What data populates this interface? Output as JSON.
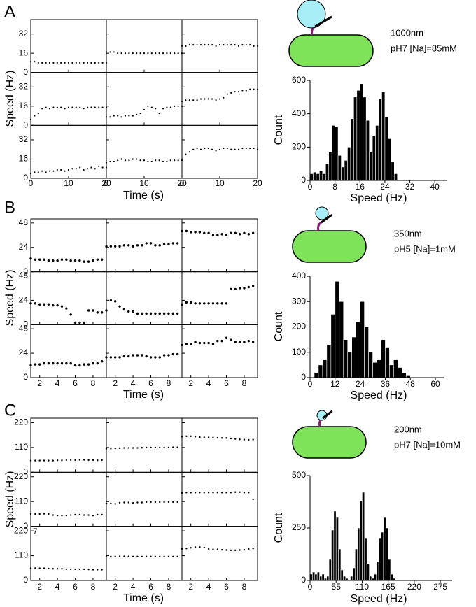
{
  "chart_data": [
    {
      "type": "scatter",
      "panel_label": "A",
      "ylabel": "Speed (Hz)",
      "xlabel": "Time (s)",
      "color": "#000000",
      "xlim": [
        0,
        20
      ],
      "xticks": [
        0,
        10,
        20
      ],
      "ylim": [
        0,
        44
      ],
      "yticks": [
        0,
        16,
        32
      ],
      "x": [
        0,
        1,
        2,
        3,
        4,
        5,
        6,
        7,
        8,
        9,
        10,
        11,
        12,
        13,
        14,
        15,
        16,
        17,
        18,
        19,
        20
      ],
      "series": [
        {
          "values": [
            9,
            9,
            8,
            8,
            8,
            8,
            8,
            8,
            8,
            8,
            8,
            8,
            8,
            8,
            8,
            8,
            8,
            8,
            8,
            8,
            8
          ]
        },
        {
          "values": [
            17,
            17,
            17,
            16,
            16,
            16,
            16,
            16,
            16,
            16,
            16,
            16,
            16,
            16,
            16,
            16,
            16,
            16,
            16,
            16,
            16
          ]
        },
        {
          "values": [
            22,
            22,
            23,
            23,
            23,
            23,
            23,
            23,
            23,
            22,
            23,
            23,
            23,
            23,
            23,
            22,
            23,
            23,
            23,
            22,
            22
          ]
        },
        {
          "values": [
            5,
            8,
            10,
            14,
            15,
            14,
            15,
            15,
            15,
            14,
            15,
            15,
            15,
            15,
            14,
            15,
            15,
            15,
            15,
            15,
            15
          ]
        },
        {
          "values": [
            7,
            7,
            8,
            8,
            7,
            8,
            8,
            8,
            9,
            10,
            13,
            16,
            15,
            14,
            10,
            14,
            15,
            15,
            16,
            16,
            16
          ]
        },
        {
          "values": [
            20,
            21,
            21,
            21,
            21,
            22,
            22,
            22,
            22,
            21,
            22,
            23,
            26,
            27,
            28,
            28,
            29,
            29,
            30,
            30,
            30
          ]
        },
        {
          "values": [
            4,
            5,
            5,
            6,
            5,
            6,
            6,
            7,
            7,
            6,
            7,
            8,
            8,
            9,
            7,
            8,
            9,
            8,
            10,
            9,
            9
          ]
        },
        {
          "values": [
            13,
            14,
            14,
            15,
            16,
            15,
            15,
            16,
            16,
            15,
            15,
            14,
            14,
            15,
            15,
            14,
            14,
            15,
            15,
            15,
            15
          ]
        },
        {
          "values": [
            16,
            20,
            22,
            24,
            25,
            24,
            25,
            25,
            24,
            23,
            24,
            25,
            25,
            24,
            24,
            24,
            25,
            25,
            25,
            25,
            24
          ]
        }
      ]
    },
    {
      "type": "histogram",
      "annotations": [
        "1000nm",
        "pH7 [Na]=85mM"
      ],
      "ylabel": "Count",
      "xlabel": "Speed (Hz)",
      "color": "#000000",
      "xlim": [
        0,
        44
      ],
      "xticks": [
        0,
        8,
        16,
        24,
        32,
        40
      ],
      "ylim": [
        0,
        600
      ],
      "yticks": [
        0,
        200,
        400,
        600
      ],
      "bins": [
        0,
        1,
        2,
        3,
        4,
        5,
        6,
        7,
        8,
        9,
        10,
        11,
        12,
        13,
        14,
        15,
        16,
        17,
        18,
        19,
        20,
        21,
        22,
        23,
        24,
        25,
        26,
        27,
        28
      ],
      "values": [
        40,
        50,
        40,
        60,
        40,
        100,
        170,
        330,
        320,
        150,
        80,
        120,
        200,
        370,
        500,
        540,
        580,
        500,
        360,
        170,
        270,
        330,
        490,
        530,
        380,
        250,
        110,
        40
      ]
    },
    {
      "type": "scatter",
      "panel_label": "B",
      "ylabel": "Speed (Hz)",
      "xlabel": "Time (s)",
      "color": "#000000",
      "xlim": [
        1,
        9.5
      ],
      "xticks": [
        2,
        4,
        6,
        8
      ],
      "ylim": [
        0,
        52
      ],
      "yticks": [
        0,
        24,
        48
      ],
      "x": [
        1,
        1.5,
        2,
        2.5,
        3,
        3.5,
        4,
        4.5,
        5,
        5.5,
        6,
        6.5,
        7,
        7.5,
        8,
        8.5,
        9
      ],
      "series": [
        {
          "values": [
            13,
            12,
            12,
            12,
            11,
            11,
            11,
            12,
            12,
            11,
            11,
            11,
            10,
            10,
            11,
            12,
            12
          ]
        },
        {
          "values": [
            25,
            25,
            25,
            25,
            26,
            26,
            25,
            26,
            26,
            28,
            28,
            26,
            26,
            27,
            27,
            28,
            28
          ]
        },
        {
          "values": [
            40,
            40,
            39,
            39,
            39,
            38,
            38,
            36,
            36,
            37,
            36,
            38,
            38,
            37,
            38,
            37,
            38
          ]
        },
        {
          "values": [
            21,
            21,
            20,
            20,
            20,
            19,
            19,
            18,
            16,
            10,
            2,
            2,
            2,
            14,
            14,
            12,
            12
          ]
        },
        {
          "values": [
            14,
            24,
            23,
            18,
            15,
            13,
            13,
            11,
            11,
            11,
            11,
            11,
            11,
            11,
            11,
            11,
            11
          ]
        },
        {
          "values": [
            20,
            22,
            22,
            21,
            21,
            21,
            21,
            21,
            21,
            21,
            21,
            35,
            35,
            36,
            36,
            37,
            38
          ]
        },
        {
          "values": [
            12,
            13,
            13,
            14,
            14,
            14,
            14,
            14,
            14,
            14,
            12,
            12,
            13,
            13,
            14,
            14,
            16
          ]
        },
        {
          "values": [
            20,
            20,
            20,
            20,
            21,
            21,
            22,
            22,
            22,
            21,
            20,
            20,
            20,
            22,
            22,
            23,
            23
          ]
        },
        {
          "values": [
            32,
            33,
            33,
            35,
            34,
            34,
            34,
            33,
            36,
            36,
            39,
            37,
            35,
            35,
            35,
            36,
            35
          ]
        }
      ]
    },
    {
      "type": "histogram",
      "annotations": [
        "350nm",
        "pH5 [Na]=1mM"
      ],
      "ylabel": "Count",
      "xlabel": "Speed (Hz)",
      "color": "#000000",
      "xlim": [
        0,
        64
      ],
      "xticks": [
        0,
        12,
        24,
        36,
        48,
        60
      ],
      "ylim": [
        0,
        400
      ],
      "yticks": [
        0,
        100,
        200,
        300,
        400
      ],
      "bins": [
        2,
        4,
        6,
        8,
        10,
        12,
        14,
        16,
        18,
        20,
        22,
        24,
        26,
        28,
        30,
        32,
        34,
        36,
        38,
        40,
        42,
        44,
        46,
        48
      ],
      "values": [
        20,
        50,
        70,
        130,
        250,
        380,
        300,
        150,
        100,
        160,
        220,
        300,
        200,
        100,
        60,
        70,
        150,
        120,
        50,
        70,
        40,
        20,
        10
      ]
    },
    {
      "type": "scatter",
      "panel_label": "C",
      "ylabel": "Speed (Hz)",
      "xlabel": "Time (s)",
      "color": "#000000",
      "annotations": [
        "7"
      ],
      "xlim": [
        1,
        9.5
      ],
      "xticks": [
        2,
        4,
        6,
        8
      ],
      "ylim": [
        0,
        240
      ],
      "yticks": [
        0,
        110,
        220
      ],
      "x": [
        1,
        1.5,
        2,
        2.5,
        3,
        3.5,
        4,
        4.5,
        5,
        5.5,
        6,
        6.5,
        7,
        7.5,
        8,
        8.5,
        9
      ],
      "series": [
        {
          "values": [
            52,
            52,
            52,
            52,
            52,
            52,
            53,
            53,
            54,
            54,
            54,
            55,
            55,
            54,
            54,
            53,
            54
          ]
        },
        {
          "values": [
            104,
            105,
            106,
            107,
            108,
            108,
            108,
            108,
            109,
            110,
            110,
            110,
            110,
            110,
            110,
            111,
            111
          ]
        },
        {
          "values": [
            158,
            160,
            160,
            158,
            156,
            155,
            155,
            154,
            153,
            152,
            152,
            150,
            148,
            146,
            145,
            144,
            145
          ]
        },
        {
          "values": [
            55,
            55,
            55,
            56,
            55,
            50,
            48,
            48,
            48,
            50,
            52,
            52,
            50,
            50,
            48,
            52,
            52
          ]
        },
        {
          "values": [
            102,
            102,
            100,
            105,
            106,
            106,
            104,
            106,
            106,
            108,
            108,
            108,
            108,
            108,
            108,
            108,
            108
          ]
        },
        {
          "values": [
            148,
            150,
            150,
            150,
            150,
            150,
            150,
            150,
            150,
            150,
            150,
            150,
            152,
            152,
            150,
            150,
            120
          ]
        },
        {
          "values": [
            55,
            55,
            54,
            54,
            53,
            52,
            52,
            52,
            50,
            50,
            50,
            50,
            50,
            49,
            48,
            48,
            48
          ]
        },
        {
          "values": [
            105,
            106,
            106,
            107,
            107,
            107,
            106,
            106,
            106,
            106,
            106,
            106,
            106,
            106,
            106,
            106,
            106
          ]
        },
        {
          "values": [
            140,
            142,
            145,
            148,
            148,
            146,
            140,
            138,
            138,
            136,
            135,
            134,
            134,
            135,
            136,
            140,
            142
          ]
        }
      ]
    },
    {
      "type": "histogram",
      "annotations": [
        "200nm",
        "pH7 [Na]=10mM"
      ],
      "ylabel": "Count",
      "xlabel": "Speed (Hz)",
      "color": "#000000",
      "xlim": [
        0,
        300
      ],
      "xticks": [
        0,
        55,
        110,
        165,
        220,
        275
      ],
      "ylim": [
        0,
        500
      ],
      "yticks": [
        0,
        250,
        500
      ],
      "bins": [
        0,
        5,
        10,
        15,
        20,
        25,
        30,
        35,
        40,
        45,
        50,
        55,
        60,
        65,
        70,
        75,
        80,
        85,
        90,
        95,
        100,
        105,
        110,
        115,
        120,
        125,
        130,
        135,
        140,
        145,
        150,
        155,
        160,
        165,
        170,
        175,
        180
      ],
      "values": [
        30,
        40,
        30,
        40,
        20,
        30,
        10,
        20,
        100,
        240,
        330,
        300,
        150,
        50,
        20,
        10,
        0,
        20,
        60,
        150,
        250,
        380,
        420,
        200,
        80,
        20,
        10,
        30,
        90,
        200,
        230,
        300,
        250,
        100,
        30,
        10
      ]
    }
  ]
}
